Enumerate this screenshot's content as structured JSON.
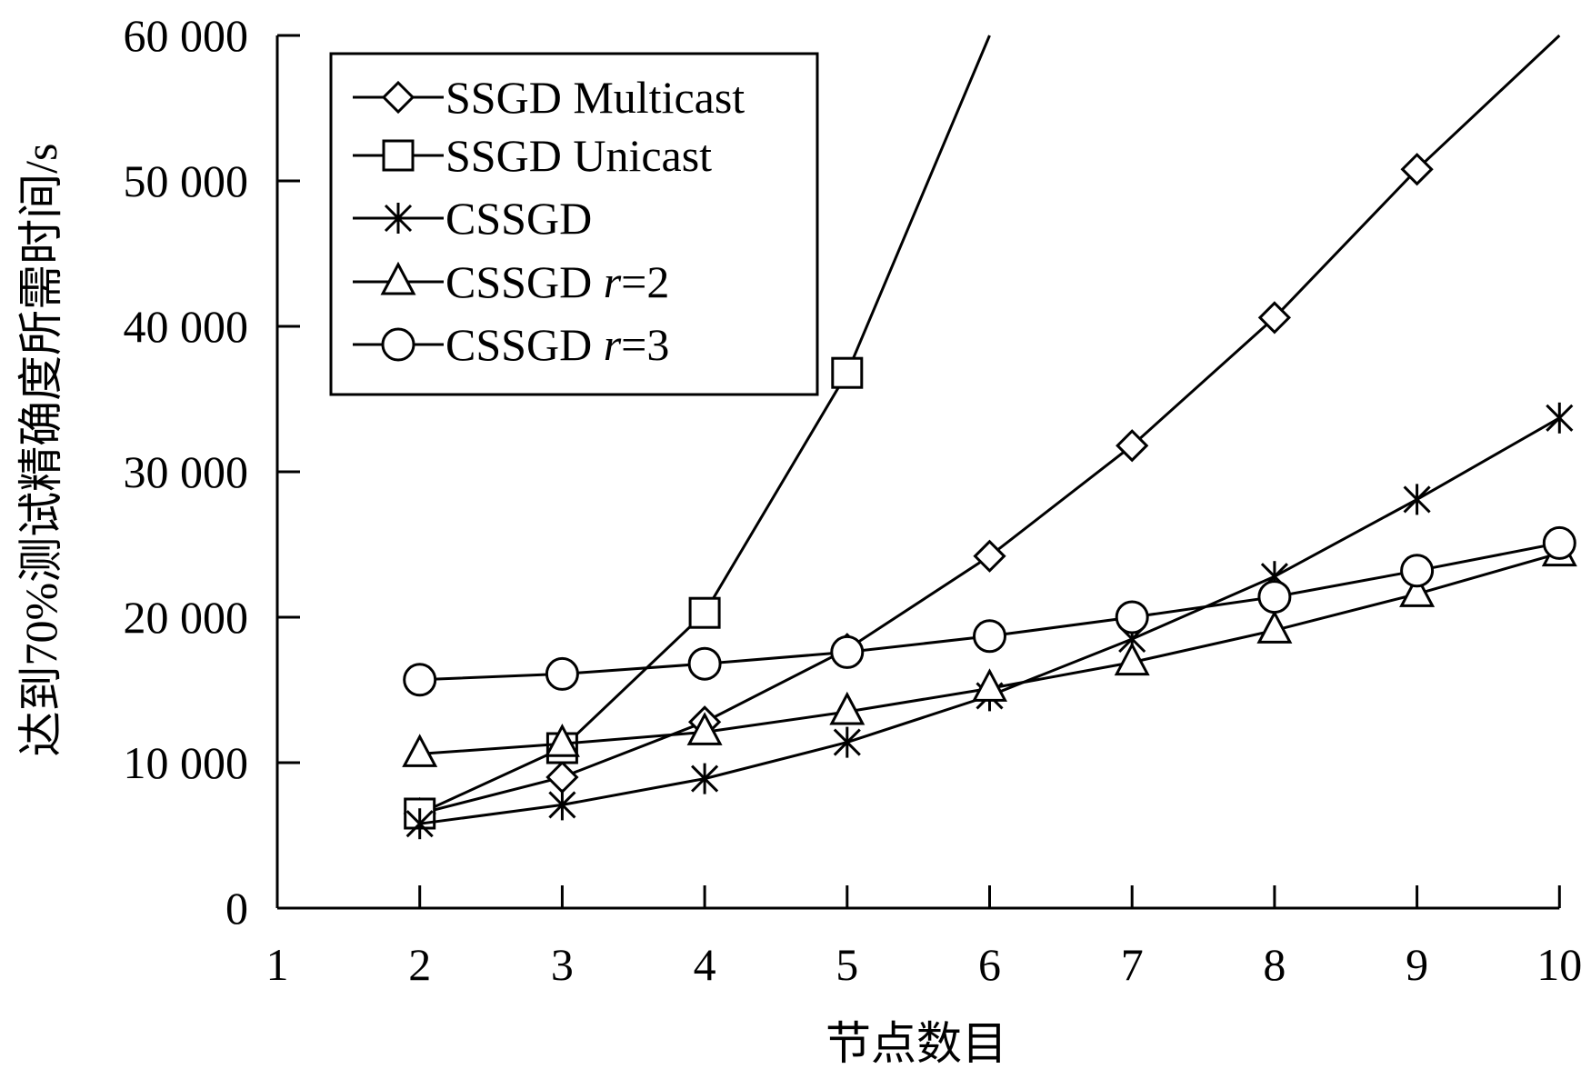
{
  "chart_data": {
    "type": "line",
    "xlabel": "节点数目",
    "ylabel": "达到70%测试精确度所需时间/s",
    "xlim": [
      1,
      10
    ],
    "ylim": [
      0,
      60000
    ],
    "x_ticks": [
      "1",
      "2",
      "3",
      "4",
      "5",
      "6",
      "7",
      "8",
      "9",
      "10"
    ],
    "y_ticks": [
      "0",
      "10 000",
      "20 000",
      "30 000",
      "40 000",
      "50 000",
      "60 000"
    ],
    "grid": false,
    "legend_position": "top-left",
    "series": [
      {
        "name": "SSGD Multicast",
        "marker": "diamond",
        "x": [
          2,
          3,
          4,
          5,
          6,
          7,
          8,
          9,
          10
        ],
        "values": [
          6500,
          9000,
          12800,
          17800,
          24200,
          31800,
          40600,
          50800,
          60000
        ],
        "marked_points": 8
      },
      {
        "name": "SSGD Unicast",
        "marker": "square",
        "x": [
          2,
          3,
          4,
          5,
          6
        ],
        "values": [
          6500,
          11000,
          20300,
          36800,
          60000
        ],
        "marked_points": 4
      },
      {
        "name": "CSSGD",
        "marker": "asterisk",
        "x": [
          2,
          3,
          4,
          5,
          6,
          7,
          8,
          9,
          10
        ],
        "values": [
          5800,
          7100,
          8900,
          11400,
          14600,
          18500,
          22800,
          28100,
          33700
        ],
        "marked_points": 9
      },
      {
        "name_prefix": "CSSGD ",
        "name_var": "r",
        "name_suffix": "=2",
        "marker": "triangle",
        "x": [
          2,
          3,
          4,
          5,
          6,
          7,
          8,
          9,
          10
        ],
        "values": [
          10600,
          11300,
          12100,
          13500,
          15100,
          16900,
          19100,
          21600,
          24400
        ],
        "marked_points": 9
      },
      {
        "name_prefix": "CSSGD ",
        "name_var": "r",
        "name_suffix": "=3",
        "marker": "circle",
        "x": [
          2,
          3,
          4,
          5,
          6,
          7,
          8,
          9,
          10
        ],
        "values": [
          15700,
          16100,
          16800,
          17600,
          18700,
          20000,
          21400,
          23200,
          25100
        ],
        "marked_points": 9
      }
    ]
  }
}
